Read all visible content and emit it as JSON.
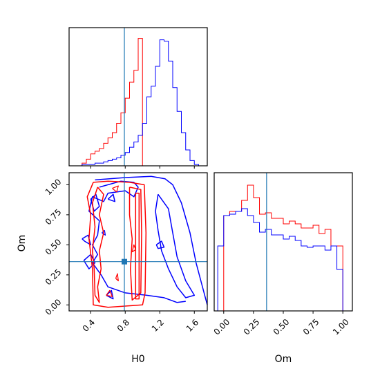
{
  "colors": {
    "red": "#ff0000",
    "blue": "#0000ff",
    "truth": "#1f77b4",
    "frame": "#000000"
  },
  "chart_data": {
    "type": "corner",
    "parameters": [
      "H0",
      "Om"
    ],
    "truth": {
      "H0": 0.79,
      "Om": 0.36
    },
    "series_colors": [
      "red",
      "blue"
    ],
    "panels": [
      {
        "id": "hist-H0",
        "type": "histogram",
        "xlim": [
          0.15,
          1.75
        ],
        "bin_edges": [
          0.3,
          0.35,
          0.4,
          0.45,
          0.5,
          0.55,
          0.6,
          0.65,
          0.7,
          0.75,
          0.8,
          0.85,
          0.9,
          0.95,
          1.0
        ],
        "series": [
          {
            "color": "red",
            "counts": [
              2,
              5,
              9,
              11,
              13,
              17,
              21,
              25,
              32,
              40,
              51,
              63,
              72,
              96
            ]
          },
          {
            "color": "blue",
            "counts": [
              1,
              1,
              1,
              2,
              2,
              3,
              4,
              5,
              6,
              8,
              10,
              14,
              18,
              23
            ]
          }
        ],
        "series_blue_rest": {
          "bin_edges": [
            1.0,
            1.05,
            1.1,
            1.15,
            1.2,
            1.25,
            1.3,
            1.35,
            1.4,
            1.45,
            1.5,
            1.55,
            1.6,
            1.65,
            1.7
          ],
          "counts": [
            32,
            52,
            60,
            75,
            95,
            94,
            79,
            59,
            41,
            25,
            12,
            4,
            1,
            0
          ]
        },
        "ylim": [
          0,
          100
        ]
      },
      {
        "id": "hist-Om",
        "type": "histogram",
        "xlim": [
          -0.08,
          1.08
        ],
        "bin_edges": [
          -0.05,
          0.0,
          0.05,
          0.1,
          0.15,
          0.2,
          0.25,
          0.3,
          0.35,
          0.4,
          0.45,
          0.5,
          0.55,
          0.6,
          0.65,
          0.7,
          0.75,
          0.8,
          0.85,
          0.9,
          0.95,
          1.0,
          1.05
        ],
        "series": [
          {
            "color": "red",
            "counts": [
              null,
              69,
              72,
              72,
              80,
              91,
              82,
              70,
              71,
              67,
              67,
              63,
              65,
              63,
              60,
              60,
              62,
              56,
              59,
              47,
              47,
              0
            ]
          },
          {
            "color": "blue",
            "counts": [
              47,
              69,
              70,
              72,
              74,
              69,
              64,
              57,
              59,
              55,
              55,
              52,
              54,
              51,
              47,
              46,
              47,
              47,
              44,
              47,
              30,
              0
            ]
          }
        ],
        "ylim": [
          0,
          100
        ]
      },
      {
        "id": "contour-H0-Om",
        "type": "contour",
        "xlim": [
          0.15,
          1.75
        ],
        "ylim": [
          -0.05,
          1.1
        ],
        "xlabel": "H0",
        "ylabel": "Om",
        "xticks": [
          "0.4",
          "0.8",
          "1.2",
          "1.6"
        ],
        "yticks": [
          "0.00",
          "0.25",
          "0.50",
          "0.75",
          "1.00"
        ]
      }
    ],
    "axis_labels": {
      "bottom_left": "H0",
      "bottom_right": "Om",
      "left": "Om"
    },
    "contour_ticks_x": [
      0.4,
      0.8,
      1.2,
      1.6
    ],
    "contour_ticks_y": [
      0.0,
      0.25,
      0.5,
      0.75,
      1.0
    ],
    "om_hist_ticks": [
      "0.00",
      "0.25",
      "0.50",
      "0.75",
      "1.00"
    ],
    "om_hist_tick_values": [
      0.0,
      0.25,
      0.5,
      0.75,
      1.0
    ]
  }
}
